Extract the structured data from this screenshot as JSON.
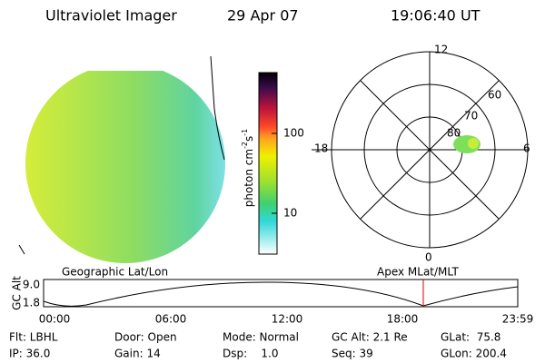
{
  "header": {
    "title": "Ultraviolet Imager",
    "date": "29 Apr 07",
    "time": "19:06:40 UT"
  },
  "colorbar": {
    "label": [
      "photon cm",
      "-2",
      "s",
      "-1"
    ],
    "ticks": [
      "100",
      "10"
    ]
  },
  "polar": {
    "mlt_labels": [
      "12",
      "18",
      "6",
      "0"
    ],
    "lat_labels": [
      "80",
      "70",
      "60"
    ]
  },
  "orbit": {
    "left_title": "Geographic Lat/Lon",
    "right_title": "Apex MLat/MLT",
    "ylabel": "GC Alt",
    "yticks": [
      "9.0",
      "1.8"
    ],
    "xticks": [
      "00:00",
      "06:00",
      "12:00",
      "18:00",
      "23:59"
    ]
  },
  "info": {
    "rows": [
      [
        "Flt: LBHL",
        "Door: Open",
        "Mode: Normal",
        "GC Alt: 2.1 Re",
        "GLat:  75.8"
      ],
      [
        "IP: 36.0",
        "Gain: 14",
        "Dsp:    1.0",
        "Seq: 39",
        "GLon: 200.4"
      ]
    ]
  }
}
